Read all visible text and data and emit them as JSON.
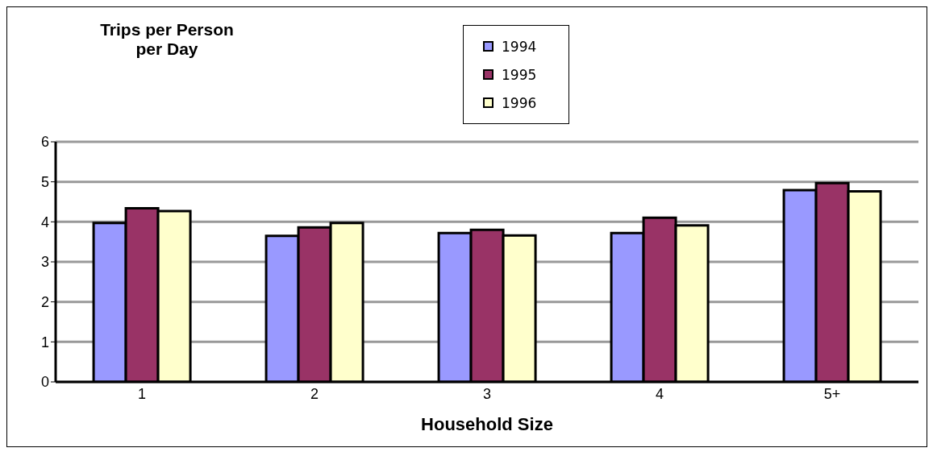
{
  "chart_data": {
    "type": "bar",
    "ylabel": "Trips per Person per Day",
    "xlabel": "Household Size",
    "categories": [
      "1",
      "2",
      "3",
      "4",
      "5+"
    ],
    "series": [
      {
        "name": "1994",
        "color": "#9999ff",
        "values": [
          3.97,
          3.65,
          3.72,
          3.72,
          4.79
        ]
      },
      {
        "name": "1995",
        "color": "#993366",
        "values": [
          4.34,
          3.86,
          3.8,
          4.1,
          4.97
        ]
      },
      {
        "name": "1996",
        "color": "#ffffcc",
        "values": [
          4.27,
          3.97,
          3.66,
          3.91,
          4.76
        ]
      }
    ],
    "ylim": [
      0,
      6
    ],
    "yticks": [
      0,
      1,
      2,
      3,
      4,
      5,
      6
    ],
    "grid": "y",
    "legend": "top"
  }
}
